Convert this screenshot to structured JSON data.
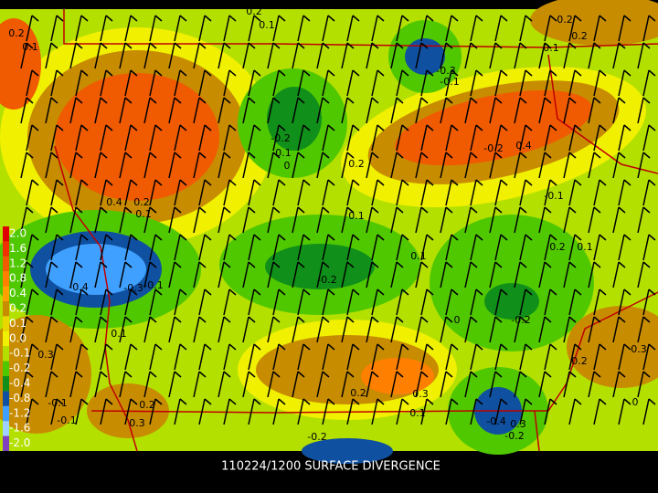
{
  "caption": "110224/1200 SURFACE DIVERGENCE",
  "legend": [
    {
      "label": "2.0",
      "color": "#e00000"
    },
    {
      "label": "1.6",
      "color": "#f03000"
    },
    {
      "label": "1.2",
      "color": "#f05a00"
    },
    {
      "label": "0.8",
      "color": "#ff8000"
    },
    {
      "label": "0.4",
      "color": "#ffa000"
    },
    {
      "label": "0.2",
      "color": "#c88c00"
    },
    {
      "label": "0.1",
      "color": "#e8d800"
    },
    {
      "label": "0.0",
      "color": "#f0f000"
    },
    {
      "label": "-0.1",
      "color": "#b4e000"
    },
    {
      "label": "-0.2",
      "color": "#50c800"
    },
    {
      "label": "-0.4",
      "color": "#10901a"
    },
    {
      "label": "-0.8",
      "color": "#1050a0"
    },
    {
      "label": "-1.2",
      "color": "#40a0ff"
    },
    {
      "label": "-1.6",
      "color": "#a0d0ff"
    },
    {
      "label": "-2.0",
      "color": "#8040c0"
    }
  ],
  "contour_labels": [
    "0.2",
    "0.1",
    "0.1",
    "0.2",
    "0.2",
    "0.2",
    "0.1",
    "-0.3",
    "-0.1",
    "-0.2",
    "-0.1",
    "0",
    "0.2",
    "-0.2",
    "0.4",
    "-0.1",
    "0.4",
    "0.2",
    "0.1",
    "0.1",
    "0.2",
    "0.1",
    "0.1",
    "-0.2",
    "-0.4",
    "-0.3",
    "-0.1",
    "0",
    "-0.2",
    "0.1",
    "0.3",
    "0.2",
    "0.2",
    "0.3",
    "0",
    "0.2",
    "0.1",
    "-0.4",
    "0.3",
    "0.3",
    "-0.2",
    "-0.2",
    "0.3",
    "-0.1",
    "-0.1"
  ]
}
